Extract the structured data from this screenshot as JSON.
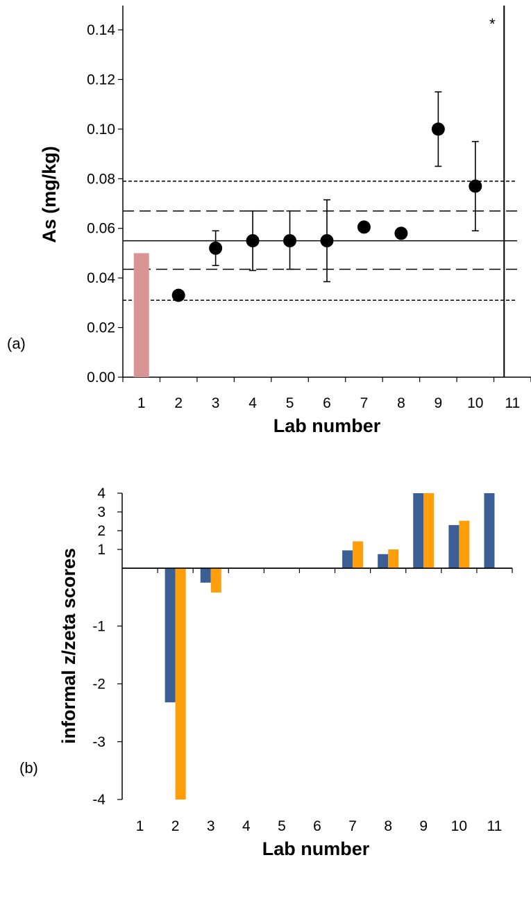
{
  "chart_data": [
    {
      "type": "scatter",
      "panel_label": "(a)",
      "xlabel": "Lab number",
      "ylabel": "As (mg/kg)",
      "categories": [
        "1",
        "2",
        "3",
        "4",
        "5",
        "6",
        "7",
        "8",
        "9",
        "10",
        "11"
      ],
      "ylim": [
        0,
        0.15
      ],
      "yticks": [
        "0.00",
        "0.02",
        "0.04",
        "0.06",
        "0.08",
        "0.10",
        "0.12",
        "0.14"
      ],
      "bar": {
        "lab": "1",
        "value": 0.05,
        "color": "#d99594"
      },
      "points": [
        {
          "lab": "2",
          "value": 0.033
        },
        {
          "lab": "3",
          "value": 0.052,
          "err_low": 0.045,
          "err_high": 0.059
        },
        {
          "lab": "4",
          "value": 0.055,
          "err_low": 0.043,
          "err_high": 0.067
        },
        {
          "lab": "5",
          "value": 0.055,
          "err_low": 0.0435,
          "err_high": 0.067
        },
        {
          "lab": "6",
          "value": 0.055,
          "err_low": 0.0385,
          "err_high": 0.0715
        },
        {
          "lab": "7",
          "value": 0.0605
        },
        {
          "lab": "8",
          "value": 0.058
        },
        {
          "lab": "9",
          "value": 0.1,
          "err_low": 0.085,
          "err_high": 0.115
        },
        {
          "lab": "10",
          "value": 0.077,
          "err_low": 0.059,
          "err_high": 0.095
        }
      ],
      "reference_lines": [
        {
          "value": 0.055,
          "style": "solid"
        },
        {
          "value": 0.067,
          "style": "long-dash"
        },
        {
          "value": 0.0435,
          "style": "long-dash"
        },
        {
          "value": 0.079,
          "style": "short-dash"
        },
        {
          "value": 0.031,
          "style": "short-dash"
        }
      ],
      "offscale_marker": {
        "lab": "11",
        "symbol": "*"
      },
      "grid": false
    },
    {
      "type": "bar",
      "panel_label": "(b)",
      "xlabel": "Lab number",
      "ylabel": "informal z/zeta scores",
      "categories": [
        "1",
        "2",
        "3",
        "4",
        "5",
        "6",
        "7",
        "8",
        "9",
        "10",
        "11"
      ],
      "ylim": [
        -4,
        4
      ],
      "yticks": [
        "-4",
        "-3",
        "-2",
        "-1",
        "1",
        "2",
        "3",
        "4"
      ],
      "series": [
        {
          "color": "#3b5f94",
          "values": [
            null,
            -2.32,
            -0.25,
            0,
            0.02,
            0,
            0.95,
            0.75,
            4,
            2.3,
            4
          ]
        },
        {
          "color": "#ff9e0b",
          "values": [
            null,
            -4,
            -0.42,
            0,
            0.02,
            0,
            1.43,
            1.0,
            4,
            2.53,
            null
          ]
        }
      ],
      "grid": false
    }
  ]
}
